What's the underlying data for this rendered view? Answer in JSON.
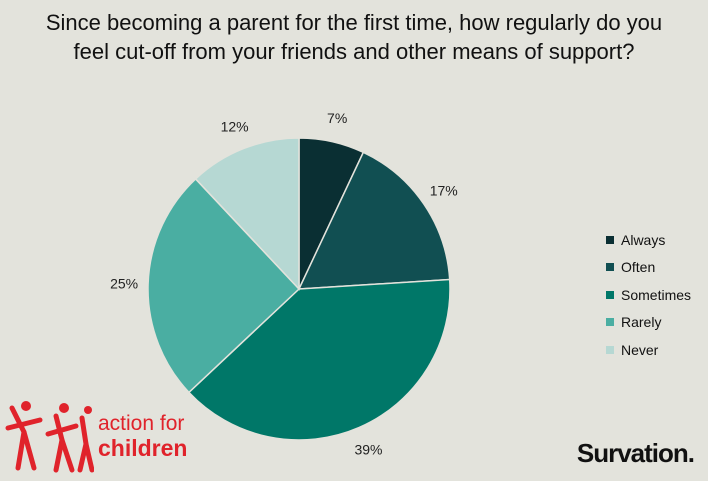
{
  "chart_data": {
    "type": "pie",
    "title": "Since becoming a parent for the first time, how regularly do you feel cut-off from your friends and other means of support?",
    "slices": [
      {
        "label": "Always",
        "value": 7,
        "display": "7%",
        "color": "#0a2f33"
      },
      {
        "label": "Often",
        "value": 17,
        "display": "17%",
        "color": "#114f52"
      },
      {
        "label": "Sometimes",
        "value": 39,
        "display": "39%",
        "color": "#007768"
      },
      {
        "label": "Rarely",
        "value": 25,
        "display": "25%",
        "color": "#4aaea2"
      },
      {
        "label": "Never",
        "value": 12,
        "display": "12%",
        "color": "#b6d8d3"
      }
    ],
    "legend_position": "right"
  },
  "branding": {
    "left_logo_line1": "action for",
    "left_logo_line2": "children",
    "right_logo": "Survation."
  }
}
